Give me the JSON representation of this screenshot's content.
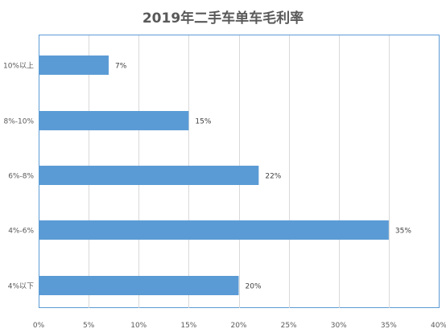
{
  "chart_data": {
    "type": "bar",
    "orientation": "horizontal",
    "title": "2019年二手车单车毛利率",
    "categories": [
      "10%以上",
      "8%-10%",
      "6%-8%",
      "4%-6%",
      "4%以下"
    ],
    "values": [
      7,
      15,
      22,
      35,
      20
    ],
    "data_labels": [
      "7%",
      "15%",
      "22%",
      "35%",
      "20%"
    ],
    "x_ticks": [
      0,
      5,
      10,
      15,
      20,
      25,
      30,
      35,
      40
    ],
    "x_tick_labels": [
      "0%",
      "5%",
      "10%",
      "15%",
      "20%",
      "25%",
      "30%",
      "35%",
      "40%"
    ],
    "xlim": [
      0,
      40
    ],
    "grid": "vertical",
    "legend": "none",
    "bar_color": "#5B9BD5",
    "grid_color": "#D9D9D9",
    "frame_color": "#5B9BD5"
  }
}
